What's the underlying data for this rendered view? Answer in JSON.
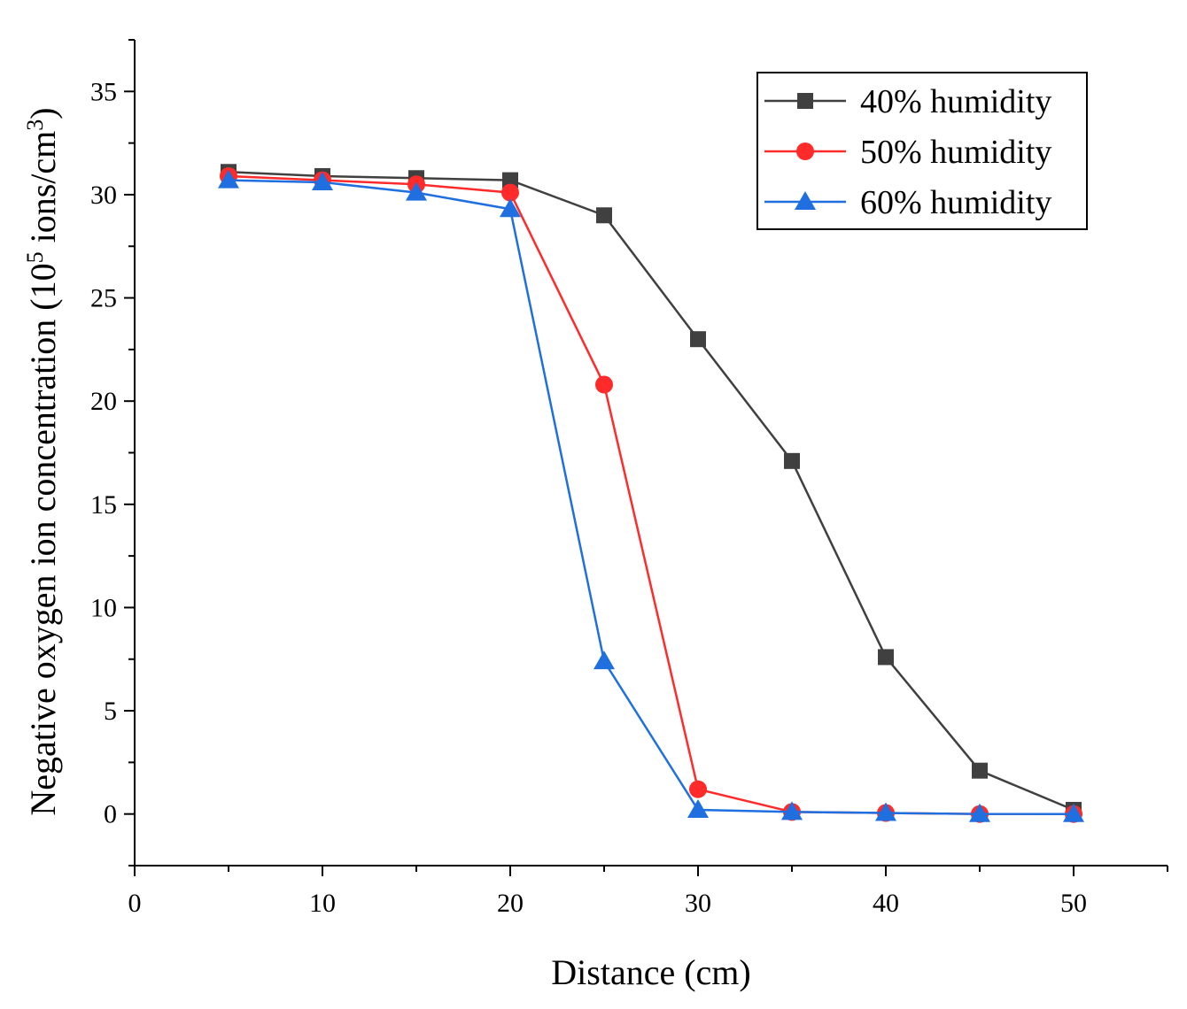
{
  "chart_data": {
    "type": "line",
    "title": "",
    "xlabel": "Distance (cm)",
    "ylabel": {
      "prefix": "Negative oxygen ion concentration (10",
      "sup1": "5",
      "middle": " ions/cm",
      "sup2": "3",
      "suffix": ")"
    },
    "xlim": [
      0,
      55
    ],
    "ylim": [
      -2.5,
      37.5
    ],
    "xticks": [
      0,
      10,
      20,
      30,
      40,
      50
    ],
    "yticks": [
      0,
      5,
      10,
      15,
      20,
      25,
      30,
      35
    ],
    "x": [
      5,
      10,
      15,
      20,
      25,
      30,
      35,
      40,
      45,
      50
    ],
    "legend_position": "top-right",
    "series": [
      {
        "name": "40% humidity",
        "color": "#404040",
        "marker": "square",
        "values": [
          31.1,
          30.9,
          30.8,
          30.7,
          29.0,
          23.0,
          17.1,
          7.6,
          2.1,
          0.2
        ]
      },
      {
        "name": "50% humidity",
        "color": "#ff2b2b",
        "marker": "circle",
        "values": [
          30.9,
          30.7,
          30.5,
          30.1,
          20.8,
          1.2,
          0.1,
          0.05,
          0.0,
          0.0
        ]
      },
      {
        "name": "60% humidity",
        "color": "#1f6fe0",
        "marker": "triangle",
        "values": [
          30.7,
          30.6,
          30.1,
          29.3,
          7.4,
          0.2,
          0.1,
          0.05,
          0.0,
          0.0
        ]
      }
    ]
  }
}
